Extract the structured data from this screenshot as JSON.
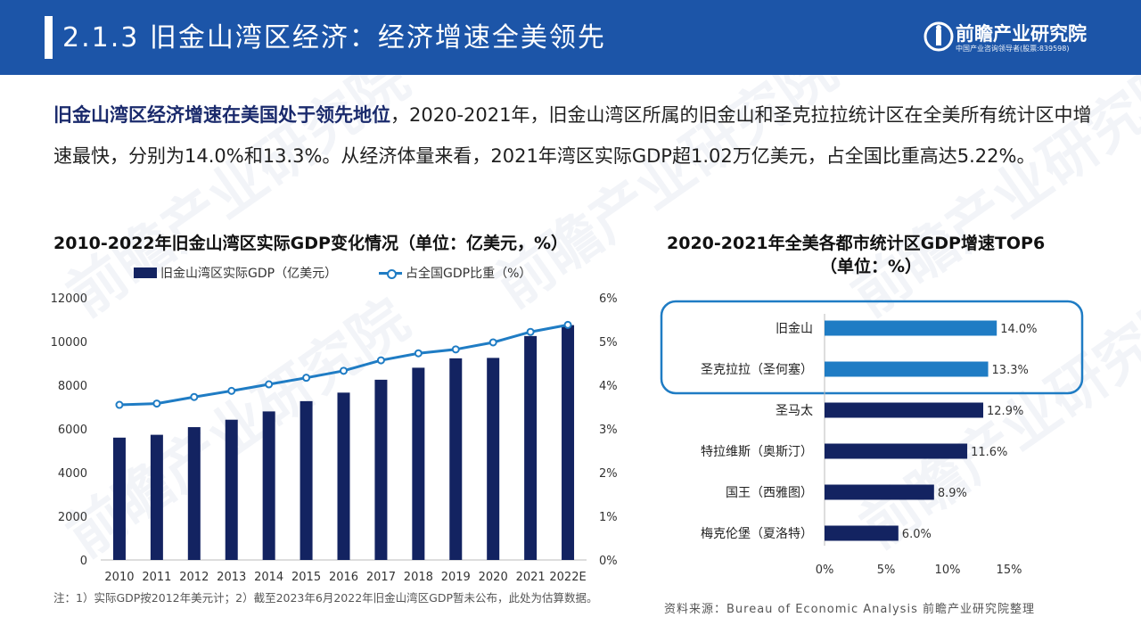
{
  "header": {
    "title": "2.1.3 旧金山湾区经济：经济增速全美领先",
    "logo_name": "前瞻产业研究院",
    "logo_sub": "中国产业咨询领导者(股票:839598)"
  },
  "intro": {
    "emphasis": "旧金山湾区经济增速在美国处于领先地位",
    "text": "，2020-2021年，旧金山湾区所属的旧金山和圣克拉拉统计区在全美所有统计区中增速最快，分别为14.0%和13.3%。从经济体量来看，2021年湾区实际GDP超1.02万亿美元，占全国比重高达5.22%。"
  },
  "watermark": "前瞻产业研究院",
  "chart_data": [
    {
      "type": "bar",
      "title": "2010-2022年旧金山湾区实际GDP变化情况（单位：亿美元，%）",
      "categories": [
        "2010",
        "2011",
        "2012",
        "2013",
        "2014",
        "2015",
        "2016",
        "2017",
        "2018",
        "2019",
        "2020",
        "2021",
        "2022E"
      ],
      "series": [
        {
          "name": "旧金山湾区实际GDP（亿美元）",
          "type": "bar",
          "axis": "left",
          "color": "#132361",
          "values": [
            5600,
            5730,
            6080,
            6420,
            6800,
            7270,
            7660,
            8250,
            8800,
            9230,
            9250,
            10250,
            10750
          ]
        },
        {
          "name": "占全国GDP比重（%）",
          "type": "line",
          "axis": "right",
          "color": "#1f7cc4",
          "values": [
            3.55,
            3.58,
            3.73,
            3.87,
            4.02,
            4.17,
            4.33,
            4.57,
            4.73,
            4.82,
            4.98,
            5.22,
            5.38
          ]
        }
      ],
      "ylim_left": [
        0,
        12000
      ],
      "yticks_left": [
        "0",
        "2000",
        "4000",
        "6000",
        "8000",
        "10000",
        "12000"
      ],
      "ylim_right": [
        0,
        6
      ],
      "yticks_right": [
        "0%",
        "1%",
        "2%",
        "3%",
        "4%",
        "5%",
        "6%"
      ],
      "legend": "top"
    },
    {
      "type": "bar",
      "orientation": "horizontal",
      "title_line1": "2020-2021年全美各都市统计区GDP增速TOP6",
      "title_line2": "（单位：%）",
      "categories": [
        "旧金山",
        "圣克拉拉（圣何塞）",
        "圣马太",
        "特拉维斯（奥斯汀）",
        "国王（西雅图）",
        "梅克伦堡（夏洛特）"
      ],
      "values": [
        14.0,
        13.3,
        12.9,
        11.6,
        8.9,
        6.0
      ],
      "value_labels": [
        "14.0%",
        "13.3%",
        "12.9%",
        "11.6%",
        "8.9%",
        "6.0%"
      ],
      "highlight_count": 2,
      "colors": {
        "highlight": "#1f7cc4",
        "normal": "#132361"
      },
      "xlim": [
        0,
        15
      ],
      "xticks": [
        "0%",
        "5%",
        "10%",
        "15%"
      ]
    }
  ],
  "note": "注：1）实际GDP按2012年美元计；2）截至2023年6月2022年旧金山湾区GDP暂未公布，此处为估算数据。",
  "source": "资料来源：Bureau of Economic Analysis 前瞻产业研究院整理"
}
